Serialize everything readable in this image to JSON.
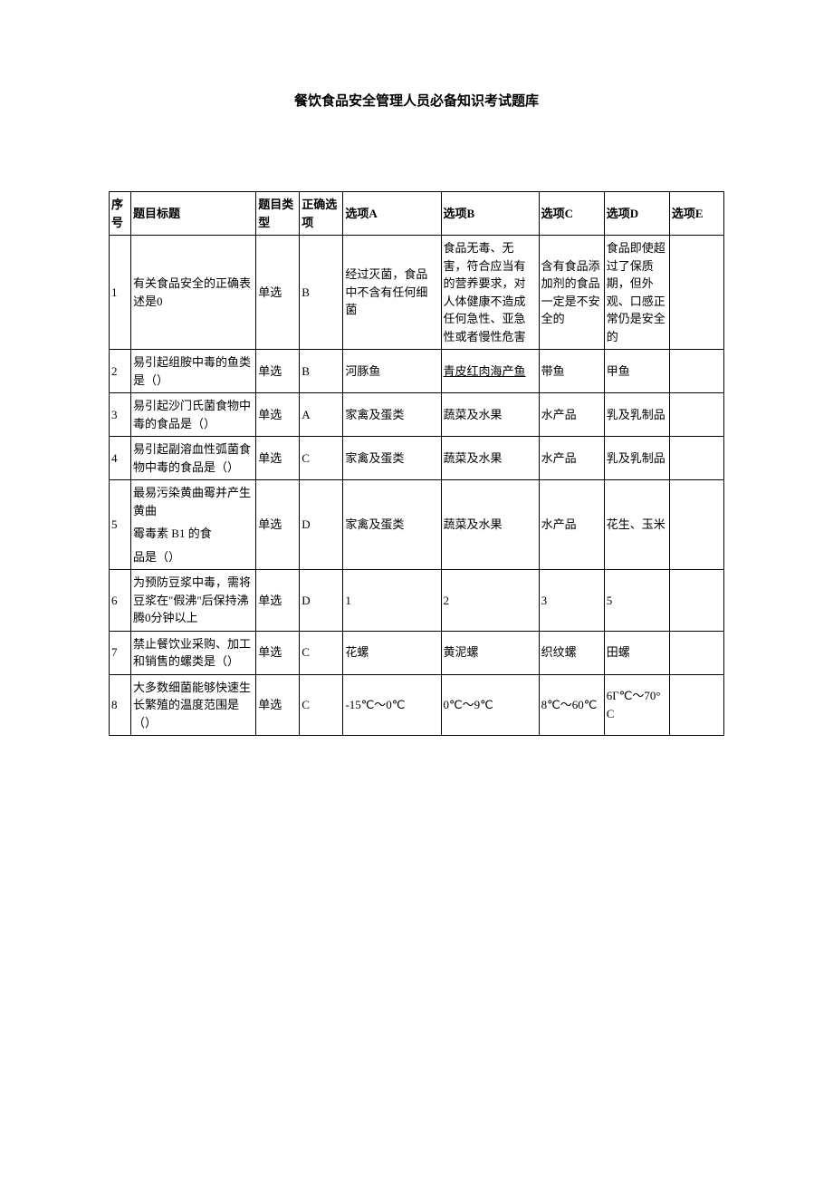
{
  "title": "餐饮食品安全管理人员必备知识考试题库",
  "headers": {
    "seq": "序号",
    "qtitle": "题目标题",
    "qtype": "题目类型",
    "answer": "正确选项",
    "optA": "选项A",
    "optB": "选项B",
    "optC": "选项C",
    "optD": "选项D",
    "optE": "选项E"
  },
  "rows": [
    {
      "seq": "1",
      "qtitle": "有关食品安全的正确表述是0",
      "qtype": "单选",
      "answer": "B",
      "optA": "经过灭菌，食品中不含有任何细菌",
      "optB": "食品无毒、无害，符合应当有的营养要求，对人体健康不造成任何急性、亚急性或者慢性危害",
      "optC": "含有食品添加剂的食品一定是不安全的",
      "optD": "食品即使超过了保质期，但外观、口感正常仍是安全的",
      "optE": ""
    },
    {
      "seq": "2",
      "qtitle": "易引起组胺中毒的鱼类是（）",
      "qtype": "单选",
      "answer": "B",
      "optA": "河豚鱼",
      "optB_html": "<span class=\"underline\">青皮红肉海产鱼</span>",
      "optC": "带鱼",
      "optD": "甲鱼",
      "optE": ""
    },
    {
      "seq": "3",
      "qtitle": "易引起沙门氏菌食物中毒的食品是（）",
      "qtype": "单选",
      "answer": "A",
      "optA": "家禽及蛋类",
      "optB": "蔬菜及水果",
      "optC": "水产品",
      "optD": "乳及乳制品",
      "optE": ""
    },
    {
      "seq": "4",
      "qtitle": "易引起副溶血性弧菌食物中毒的食品是（）",
      "qtype": "单选",
      "answer": "C",
      "optA": "家禽及蛋类",
      "optB": "蔬菜及水果",
      "optC": "水产品",
      "optD": "乳及乳制品",
      "optE": ""
    },
    {
      "seq": "5",
      "qtitle_html": "最易污染黄曲霉并产生黄曲<span class=\"sub-row\">霉毒素 B1 的食</span><span class=\"sub-row\">品是（）</span>",
      "qtype": "单选",
      "answer": "D",
      "optA": "家禽及蛋类",
      "optB": "蔬菜及水果",
      "optC": "水产品",
      "optD": "花生、玉米",
      "optE": ""
    },
    {
      "seq": "6",
      "qtitle": "为预防豆浆中毒，需将豆浆在\"假沸\"后保持沸腾0分钟以上",
      "qtype": "单选",
      "answer": "D",
      "optA": "1",
      "optB": "2",
      "optC": "3",
      "optD": "5",
      "optE": ""
    },
    {
      "seq": "7",
      "qtitle": "禁止餐饮业采购、加工和销售的螺类是（）",
      "qtype": "单选",
      "answer": "C",
      "optA": "花螺",
      "optB": "黄泥螺",
      "optC": "织纹螺",
      "optD": "田螺",
      "optE": ""
    },
    {
      "seq": "8",
      "qtitle": "大多数细菌能够快速生长繁殖的温度范围是（）",
      "qtype": "单选",
      "answer": "C",
      "optA": "-15℃～0℃",
      "optB": "0℃～9℃",
      "optC": "8℃～60℃",
      "optD": "6Γ℃～70°C",
      "optE": ""
    }
  ]
}
